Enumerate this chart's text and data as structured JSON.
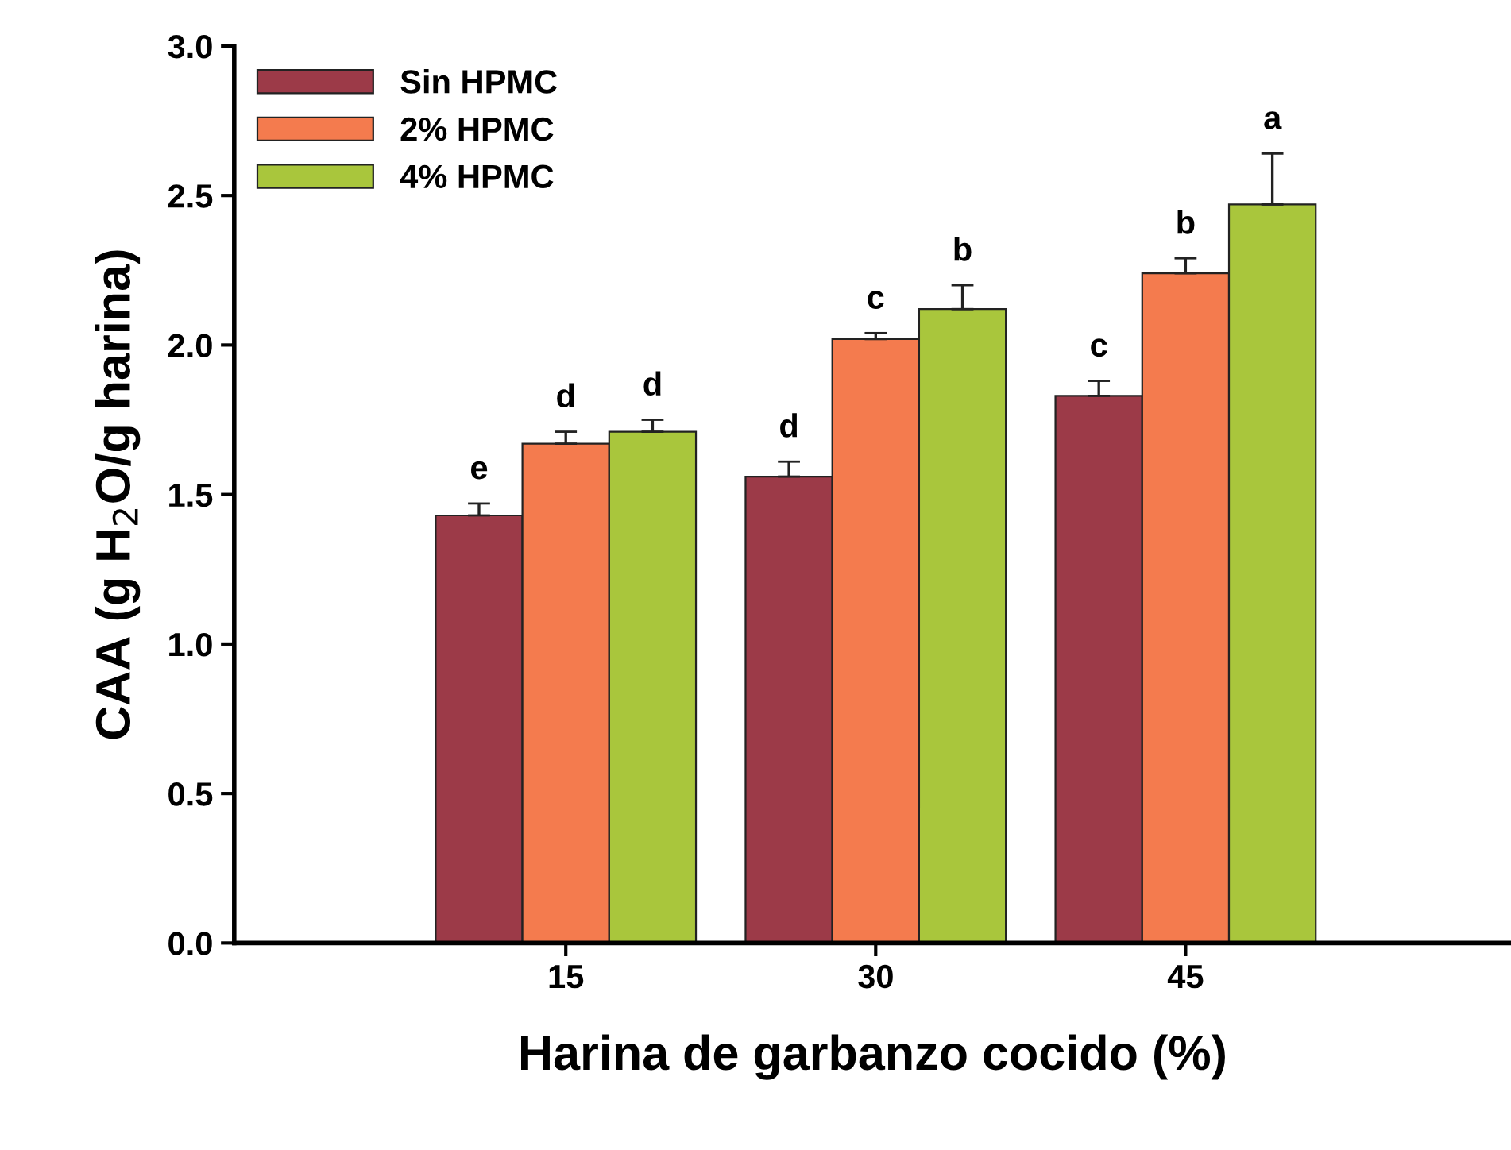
{
  "chart_data": {
    "type": "bar",
    "xlabel": "Harina de garbanzo cocido (%)",
    "ylabel": "CAA (g H$_{2}$O/g harina)",
    "categories": [
      "15",
      "30",
      "45"
    ],
    "series": [
      {
        "name": "Sin HPMC",
        "color": "#9c3a48",
        "values": [
          1.43,
          1.56,
          1.83
        ],
        "errors": [
          [
            1.43,
            1.47
          ],
          [
            1.56,
            1.61
          ],
          [
            1.83,
            1.88
          ]
        ]
      },
      {
        "name": "2% HPMC",
        "color": "#f47b4e",
        "values": [
          1.67,
          2.02,
          2.24
        ],
        "errors": [
          [
            1.67,
            1.71
          ],
          [
            2.02,
            2.04
          ],
          [
            2.24,
            2.29
          ]
        ]
      },
      {
        "name": "4% HPMC",
        "color": "#a9c63c",
        "values": [
          1.71,
          2.12,
          2.47
        ],
        "errors": [
          [
            1.71,
            1.75
          ],
          [
            2.12,
            2.2
          ],
          [
            2.47,
            2.64
          ]
        ]
      }
    ],
    "annotations": [
      "e",
      "d",
      "d",
      "d",
      "c",
      "b",
      "c",
      "b",
      "a"
    ],
    "ylim": [
      0,
      3
    ],
    "yticks": [
      {
        "value": 0,
        "label": "0.0"
      },
      {
        "value": 0.5,
        "label": "0.5"
      },
      {
        "value": 1,
        "label": "1.0"
      },
      {
        "value": 1.5,
        "label": "1.5"
      },
      {
        "value": 2,
        "label": "2.0"
      },
      {
        "value": 2.5,
        "label": "2.5"
      },
      {
        "value": 3,
        "label": "3.0"
      }
    ],
    "legend": "top left",
    "grid": false
  }
}
